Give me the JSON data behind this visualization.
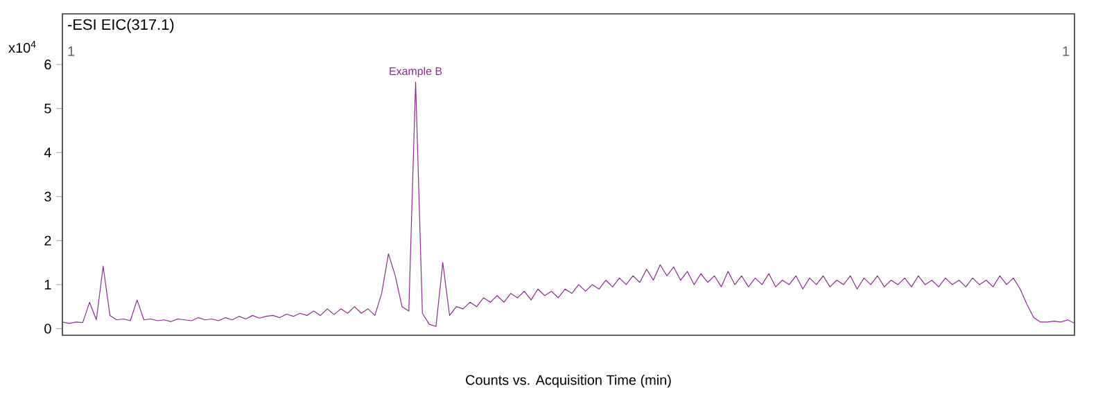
{
  "chart_data": {
    "type": "line",
    "title": "-ESI EIC(317.1)",
    "xlabel": "Counts vs. Acquisition Time (min)",
    "ylabel": "x10$^{4}$",
    "annotations": [
      "Example B",
      "1",
      "1"
    ],
    "categories": [
      null,
      null,
      null,
      null,
      null,
      null,
      null,
      null,
      null,
      null,
      null,
      null,
      null,
      null,
      null,
      null,
      null,
      null,
      null,
      null,
      null,
      null,
      null,
      null,
      null,
      null,
      null,
      null,
      null,
      null,
      null,
      null,
      null,
      null,
      null,
      null,
      null,
      null,
      null,
      null,
      null,
      null,
      null,
      null,
      null,
      null,
      null,
      null,
      null,
      null,
      null,
      null,
      null,
      null,
      null,
      null,
      null,
      null,
      null,
      null,
      null,
      null,
      null,
      null,
      null,
      null,
      null,
      null,
      null,
      null,
      null,
      null,
      null,
      null,
      null,
      null,
      null,
      null,
      null,
      null,
      null,
      null,
      null,
      null,
      null,
      null,
      null,
      null,
      null,
      null,
      null,
      null,
      null,
      null,
      null,
      null,
      null,
      null,
      null,
      null,
      null,
      null,
      null,
      null,
      null,
      null,
      null,
      null,
      null,
      null,
      null,
      null,
      null,
      null,
      null,
      null,
      null,
      null,
      null,
      null,
      null,
      null,
      null,
      null,
      null,
      null,
      null,
      null,
      null,
      null,
      null,
      null,
      null,
      null,
      null,
      null,
      null,
      null,
      null,
      null,
      null,
      null,
      null,
      null,
      null,
      null,
      null,
      null,
      null,
      null
    ],
    "series": [
      {
        "color": "#8b2a8f",
        "values": [
          0.15,
          0.12,
          0.15,
          0.14,
          0.6,
          0.2,
          1.42,
          0.3,
          0.2,
          0.22,
          0.18,
          0.65,
          0.2,
          0.22,
          0.18,
          0.2,
          0.16,
          0.22,
          0.2,
          0.18,
          0.25,
          0.2,
          0.22,
          0.18,
          0.25,
          0.2,
          0.28,
          0.22,
          0.3,
          0.24,
          0.28,
          0.3,
          0.25,
          0.33,
          0.28,
          0.35,
          0.3,
          0.4,
          0.3,
          0.45,
          0.32,
          0.45,
          0.35,
          0.5,
          0.35,
          0.45,
          0.3,
          0.8,
          1.7,
          1.2,
          0.5,
          0.4,
          5.6,
          0.35,
          0.1,
          0.05,
          1.5,
          0.3,
          0.5,
          0.45,
          0.6,
          0.5,
          0.7,
          0.6,
          0.75,
          0.6,
          0.8,
          0.7,
          0.85,
          0.65,
          0.9,
          0.75,
          0.85,
          0.7,
          0.9,
          0.8,
          1.0,
          0.85,
          1.0,
          0.9,
          1.1,
          0.95,
          1.15,
          1.0,
          1.2,
          1.05,
          1.35,
          1.1,
          1.45,
          1.2,
          1.4,
          1.1,
          1.3,
          1.0,
          1.25,
          1.05,
          1.2,
          0.95,
          1.3,
          1.0,
          1.2,
          0.95,
          1.15,
          1.0,
          1.25,
          0.95,
          1.1,
          1.0,
          1.2,
          0.9,
          1.15,
          1.0,
          1.2,
          0.95,
          1.1,
          1.0,
          1.2,
          0.9,
          1.15,
          1.0,
          1.2,
          0.95,
          1.1,
          1.0,
          1.15,
          0.95,
          1.2,
          1.0,
          1.1,
          0.95,
          1.15,
          1.0,
          1.1,
          0.95,
          1.15,
          1.0,
          1.1,
          0.95,
          1.2,
          1.0,
          1.15,
          0.9,
          0.55,
          0.25,
          0.15,
          0.15,
          0.17,
          0.15,
          0.2,
          0.12
        ]
      }
    ],
    "ylim": [
      -0.15,
      7.15
    ],
    "yticks": [
      0,
      1,
      2,
      3,
      4,
      5,
      6
    ],
    "tick_labels": "y",
    "grid": false,
    "marker": "none",
    "line_style": "solid"
  }
}
